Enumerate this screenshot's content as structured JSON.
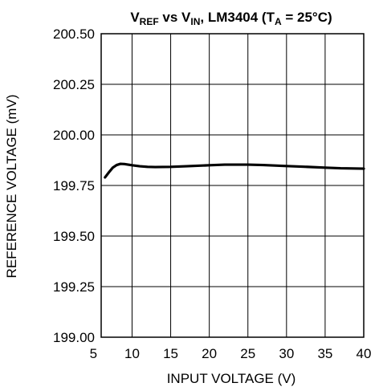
{
  "chart_data": {
    "type": "line",
    "title": {
      "v1": "V",
      "sub1": "REF",
      "mid": " vs V",
      "sub2": "IN",
      "part3": ", LM3404 (T",
      "sub3": "A",
      "part4": " = 25°C)"
    },
    "xlabel": "INPUT VOLTAGE (V)",
    "ylabel": "REFERENCE VOLTAGE (mV)",
    "xlim": [
      6,
      40
    ],
    "ylim": [
      199.0,
      200.5
    ],
    "x_ticks": [
      5,
      10,
      15,
      20,
      25,
      30,
      35,
      40
    ],
    "x_tick_labels": [
      "5",
      "10",
      "15",
      "20",
      "25",
      "30",
      "35",
      "40"
    ],
    "y_ticks": [
      199.0,
      199.25,
      199.5,
      199.75,
      200.0,
      200.25,
      200.5
    ],
    "y_tick_labels": [
      "199.00",
      "199.25",
      "199.50",
      "199.75",
      "200.00",
      "200.25",
      "200.50"
    ],
    "grid": true,
    "series": [
      {
        "x": [
          6.5,
          7,
          7.5,
          8,
          8.5,
          9,
          10,
          11,
          12,
          13,
          15,
          17,
          20,
          22,
          25,
          27,
          30,
          32,
          35,
          37,
          40
        ],
        "y": [
          199.79,
          199.815,
          199.838,
          199.851,
          199.857,
          199.856,
          199.85,
          199.845,
          199.842,
          199.841,
          199.842,
          199.845,
          199.85,
          199.853,
          199.853,
          199.851,
          199.846,
          199.843,
          199.838,
          199.835,
          199.833
        ]
      }
    ]
  }
}
